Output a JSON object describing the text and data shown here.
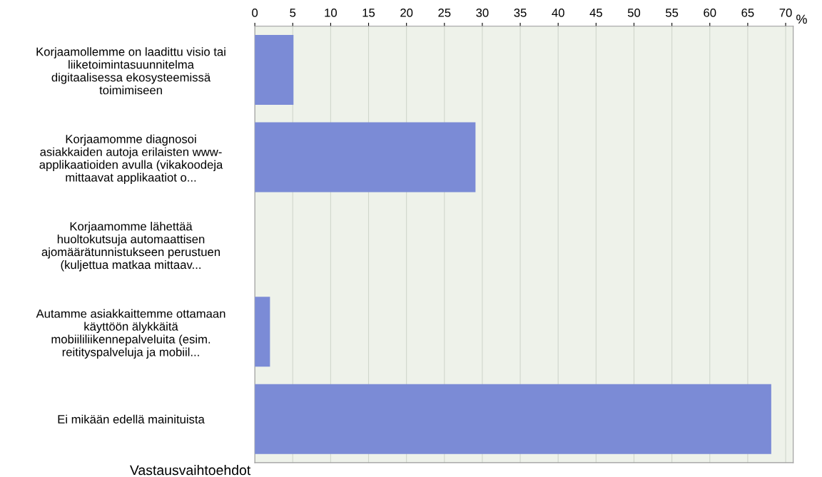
{
  "chart_data": {
    "type": "bar",
    "orientation": "horizontal",
    "categories": [
      "Korjaamollemme on laadittu visio tai\nliiketoimintasuunnitelma\ndigitaalisessa ekosysteemissä\ntoimimiseen",
      "Korjaamomme diagnosoi\nasiakkaiden autoja erilaisten www-\napplikaatioiden avulla (vikakoodeja\nmittaavat applikaatiot o...",
      "Korjaamomme lähettää\nhuoltokutsuja automaattisen\najomäärätunnistukseen perustuen\n(kuljettua matkaa mittaav...",
      "Autamme asiakkaittemme ottamaan\nkäyttöön älykkäitä\nmobiililiikennepalveluita (esim.\nreitityspalveluja ja mobiil...",
      "Ei mikään edellä mainituista"
    ],
    "values": [
      5.1,
      29.1,
      0,
      2.0,
      68.1
    ],
    "color": "#7b8bd6",
    "xlim": [
      0,
      71
    ],
    "xticks": [
      0,
      5,
      10,
      15,
      20,
      25,
      30,
      35,
      40,
      45,
      50,
      55,
      60,
      65,
      70
    ],
    "xlabel": "%",
    "ylabel": "Vastausvaihtoehdot",
    "grid": "x"
  }
}
